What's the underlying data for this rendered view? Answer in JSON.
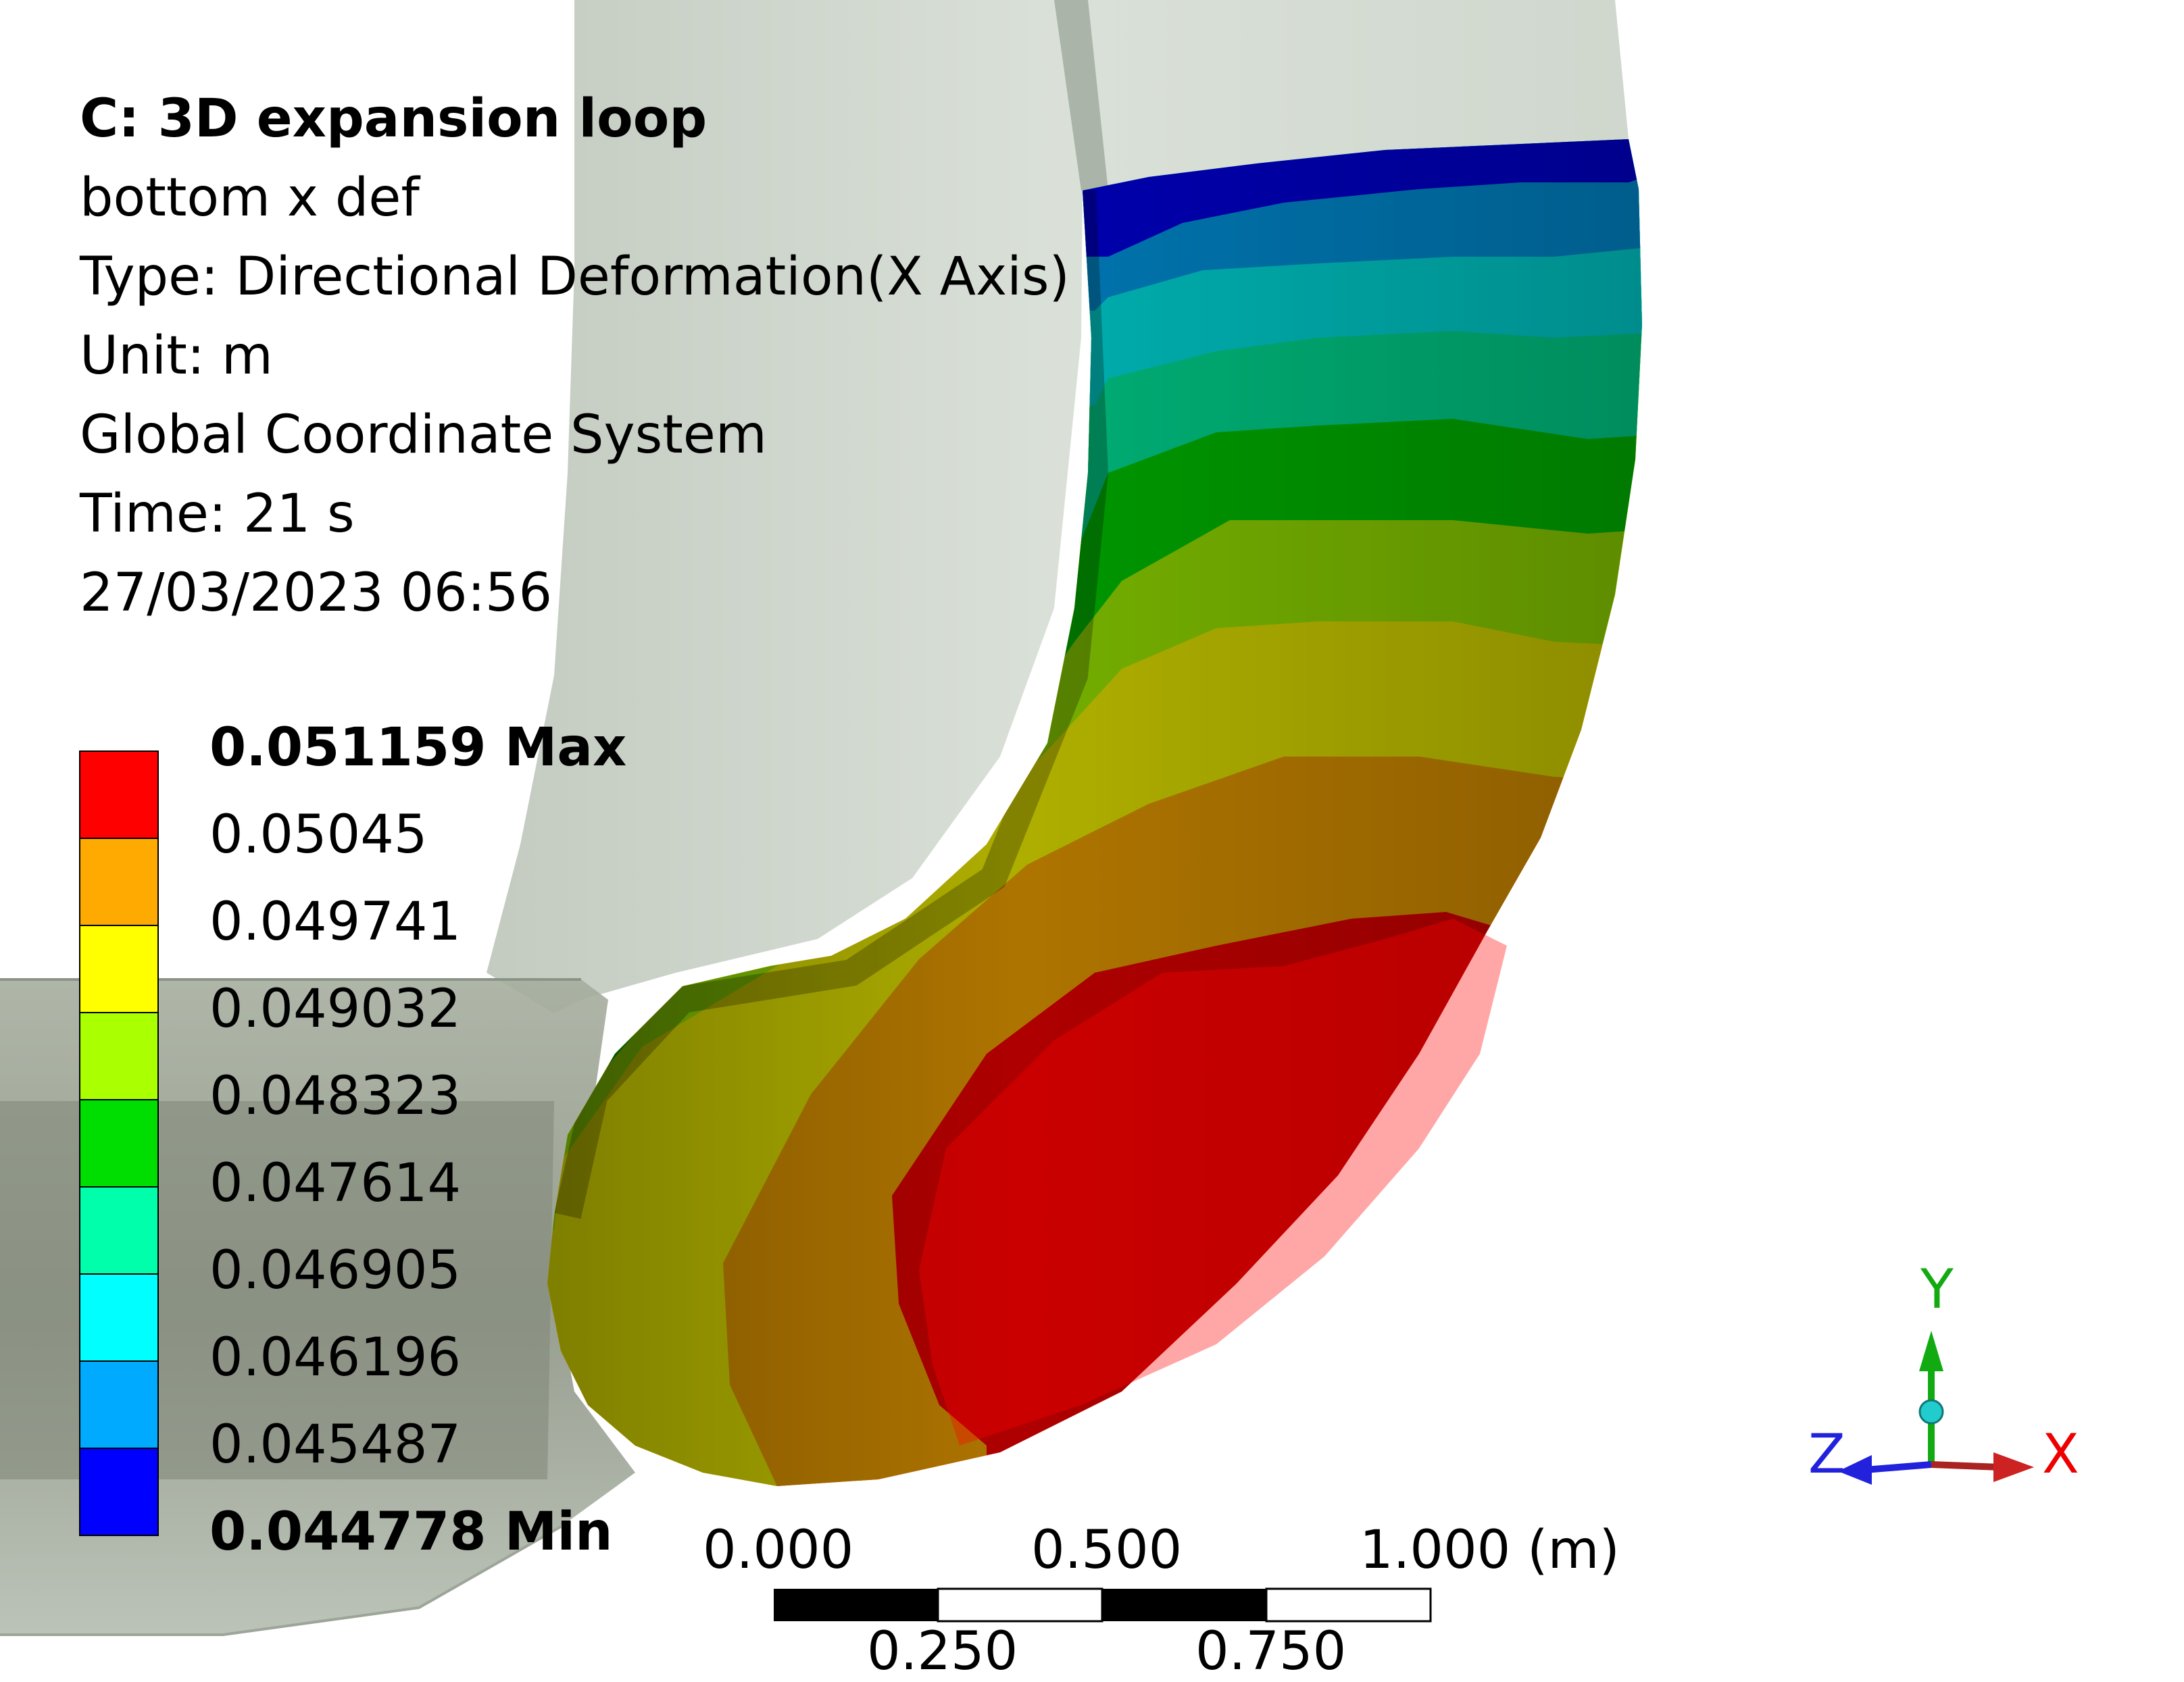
{
  "info": {
    "title": "C: 3D expansion loop",
    "result_name": "bottom x def",
    "type": "Type: Directional Deformation(X Axis)",
    "unit": "Unit: m",
    "coordinate_system": "Global Coordinate System",
    "time": "Time: 21 s",
    "timestamp": "27/03/2023 06:56"
  },
  "legend": {
    "labels": [
      "0.051159 Max",
      "0.05045",
      "0.049741",
      "0.049032",
      "0.048323",
      "0.047614",
      "0.046905",
      "0.046196",
      "0.045487",
      "0.044778 Min"
    ],
    "colors": [
      "#ff0000",
      "#ffaa00",
      "#ffff00",
      "#aaff00",
      "#00dd00",
      "#00ffaa",
      "#00ffff",
      "#00aaff",
      "#0000ff"
    ]
  },
  "scale_bar": {
    "top_labels": [
      "0.000",
      "0.500",
      "1.000 (m)"
    ],
    "bottom_labels": [
      "0.250",
      "0.750"
    ]
  },
  "triad": {
    "x_label": "X",
    "y_label": "Y",
    "z_label": "Z",
    "x_color": "#ee0000",
    "y_color": "#11aa11",
    "z_color": "#2222dd"
  }
}
